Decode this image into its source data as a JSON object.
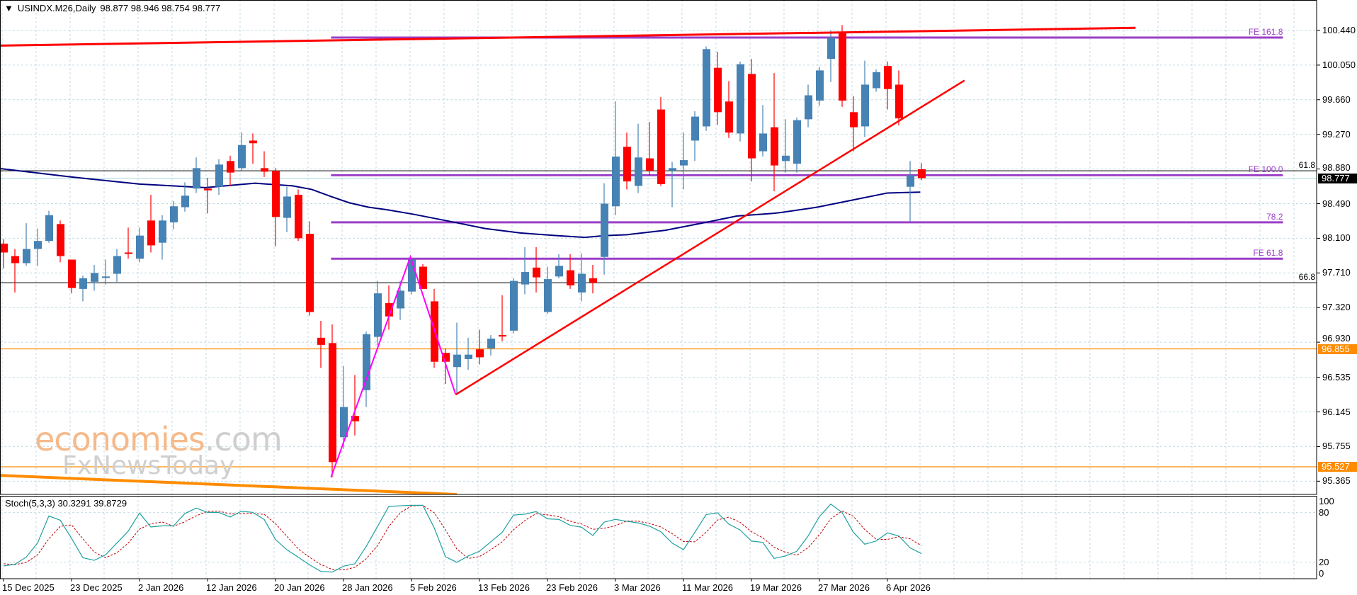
{
  "header": {
    "arrow_icon": "triangle-down-icon",
    "arrow": "▼",
    "symbol": "USINDX.M26,Daily",
    "ohlc": "98.877 98.946 98.754 98.777"
  },
  "watermark": {
    "brand1": "economies",
    "brand1_suffix": ".com",
    "brand2": "FxNewsToday",
    "brand1_color": "#f6b98a",
    "brand2_color": "#cfcfcf"
  },
  "colors": {
    "bull": "#4682B4",
    "bear": "#FF0000",
    "ma": "#000080",
    "fe": "#9B3FC8",
    "zigzag": "#FF00FF",
    "grid": "#c4dbe3",
    "orange": "#FF8C00",
    "stoch_k": "#20A0A0",
    "stoch_d": "#C00000"
  },
  "chart_data": {
    "type": "candlestick",
    "symbol": "USINDX.M26",
    "timeframe": "Daily",
    "ylim": [
      95.216,
      100.783
    ],
    "y_ticks": [
      "100.440",
      "100.050",
      "99.660",
      "99.270",
      "98.880",
      "98.490",
      "98.100",
      "97.710",
      "97.320",
      "96.930",
      "96.535",
      "96.145",
      "95.755",
      "95.365"
    ],
    "x_labels": [
      {
        "bar": 0,
        "text": "15 Dec 2025"
      },
      {
        "bar": 6,
        "text": "23 Dec 2025"
      },
      {
        "bar": 12,
        "text": "2 Jan 2026"
      },
      {
        "bar": 18,
        "text": "12 Jan 2026"
      },
      {
        "bar": 24,
        "text": "20 Jan 2026"
      },
      {
        "bar": 30,
        "text": "28 Jan 2026"
      },
      {
        "bar": 36,
        "text": "5 Feb 2026"
      },
      {
        "bar": 42,
        "text": "13 Feb 2026"
      },
      {
        "bar": 48,
        "text": "23 Feb 2026"
      },
      {
        "bar": 54,
        "text": "3 Mar 2026"
      },
      {
        "bar": 60,
        "text": "11 Mar 2026"
      },
      {
        "bar": 66,
        "text": "19 Mar 2026"
      },
      {
        "bar": 72,
        "text": "27 Mar 2026"
      },
      {
        "bar": 78,
        "text": "6 Apr 2026"
      }
    ],
    "candles_ohlc": [
      [
        98.04,
        98.09,
        97.76,
        97.94
      ],
      [
        97.9,
        97.98,
        97.49,
        97.82
      ],
      [
        97.82,
        98.27,
        97.79,
        97.98
      ],
      [
        97.98,
        98.21,
        97.79,
        98.07
      ],
      [
        98.07,
        98.41,
        98.05,
        98.36
      ],
      [
        98.26,
        98.3,
        97.83,
        97.9
      ],
      [
        97.86,
        97.86,
        97.48,
        97.54
      ],
      [
        97.53,
        97.68,
        97.39,
        97.65
      ],
      [
        97.61,
        97.8,
        97.51,
        97.71
      ],
      [
        97.66,
        97.86,
        97.58,
        97.67
      ],
      [
        97.7,
        97.98,
        97.61,
        97.9
      ],
      [
        97.94,
        98.22,
        97.87,
        97.93
      ],
      [
        97.87,
        98.22,
        97.83,
        98.13
      ],
      [
        98.3,
        98.59,
        97.94,
        98.02
      ],
      [
        98.05,
        98.36,
        97.86,
        98.3
      ],
      [
        98.28,
        98.52,
        98.2,
        98.46
      ],
      [
        98.45,
        98.73,
        98.4,
        98.58
      ],
      [
        98.66,
        99.01,
        98.61,
        98.89
      ],
      [
        98.66,
        98.78,
        98.38,
        98.64
      ],
      [
        98.68,
        98.99,
        98.59,
        98.93
      ],
      [
        98.97,
        99.03,
        98.69,
        98.84
      ],
      [
        98.89,
        99.29,
        98.86,
        99.15
      ],
      [
        99.2,
        99.28,
        98.94,
        99.17
      ],
      [
        98.89,
        99.08,
        98.79,
        98.85
      ],
      [
        98.86,
        98.89,
        98.01,
        98.34
      ],
      [
        98.33,
        98.68,
        98.17,
        98.57
      ],
      [
        98.59,
        98.65,
        98.07,
        98.1
      ],
      [
        98.15,
        98.29,
        97.23,
        97.27
      ],
      [
        96.98,
        97.17,
        96.64,
        96.9
      ],
      [
        96.92,
        97.13,
        95.41,
        95.58
      ],
      [
        95.86,
        96.66,
        95.73,
        96.2
      ],
      [
        96.1,
        96.56,
        95.88,
        96.04
      ],
      [
        96.39,
        97.05,
        96.2,
        97.02
      ],
      [
        96.99,
        97.62,
        96.9,
        97.48
      ],
      [
        97.37,
        97.57,
        97.07,
        97.22
      ],
      [
        97.31,
        97.62,
        97.18,
        97.51
      ],
      [
        97.5,
        97.87,
        97.47,
        97.86
      ],
      [
        97.78,
        97.81,
        97.53,
        97.53
      ],
      [
        97.39,
        97.53,
        96.64,
        96.71
      ],
      [
        96.81,
        96.86,
        96.46,
        96.71
      ],
      [
        96.65,
        97.15,
        96.34,
        96.79
      ],
      [
        96.74,
        96.98,
        96.62,
        96.79
      ],
      [
        96.85,
        97.07,
        96.68,
        96.76
      ],
      [
        96.86,
        97.01,
        96.78,
        96.97
      ],
      [
        97.01,
        97.46,
        96.94,
        97.0
      ],
      [
        97.06,
        97.65,
        97.03,
        97.62
      ],
      [
        97.58,
        98.0,
        97.47,
        97.72
      ],
      [
        97.77,
        98.0,
        97.49,
        97.66
      ],
      [
        97.27,
        97.78,
        97.25,
        97.64
      ],
      [
        97.67,
        97.92,
        97.65,
        97.79
      ],
      [
        97.74,
        97.92,
        97.53,
        97.57
      ],
      [
        97.49,
        97.93,
        97.39,
        97.7
      ],
      [
        97.65,
        97.8,
        97.48,
        97.6
      ],
      [
        97.89,
        98.72,
        97.69,
        98.49
      ],
      [
        98.46,
        99.64,
        98.36,
        99.02
      ],
      [
        99.13,
        99.29,
        98.65,
        98.74
      ],
      [
        98.69,
        99.39,
        98.61,
        99.01
      ],
      [
        99.0,
        99.41,
        98.81,
        98.86
      ],
      [
        99.55,
        99.69,
        98.69,
        98.71
      ],
      [
        98.86,
        98.96,
        98.45,
        98.89
      ],
      [
        98.92,
        99.29,
        98.65,
        98.98
      ],
      [
        99.2,
        99.53,
        98.97,
        99.47
      ],
      [
        99.36,
        100.26,
        99.31,
        100.23
      ],
      [
        100.02,
        100.2,
        99.38,
        99.52
      ],
      [
        99.64,
        99.87,
        99.23,
        99.29
      ],
      [
        99.28,
        100.09,
        99.19,
        100.06
      ],
      [
        99.95,
        100.12,
        98.74,
        99.0
      ],
      [
        99.08,
        99.6,
        99.02,
        99.28
      ],
      [
        99.35,
        99.96,
        98.63,
        98.92
      ],
      [
        98.97,
        99.44,
        98.84,
        99.03
      ],
      [
        98.94,
        99.46,
        98.84,
        99.43
      ],
      [
        99.44,
        99.83,
        99.35,
        99.71
      ],
      [
        99.65,
        100.03,
        99.59,
        99.99
      ],
      [
        100.12,
        100.44,
        99.86,
        100.36
      ],
      [
        100.42,
        100.5,
        99.58,
        99.65
      ],
      [
        99.52,
        99.7,
        99.08,
        99.35
      ],
      [
        99.36,
        100.1,
        99.24,
        99.83
      ],
      [
        99.79,
        100.0,
        99.75,
        99.97
      ],
      [
        100.04,
        100.09,
        99.55,
        99.78
      ],
      [
        99.83,
        99.99,
        99.37,
        99.45
      ],
      [
        98.68,
        98.97,
        98.29,
        98.81
      ],
      [
        98.877,
        98.946,
        98.754,
        98.777
      ]
    ],
    "moving_average": [
      [
        -0.3,
        98.885
      ],
      [
        6,
        98.79
      ],
      [
        12,
        98.71
      ],
      [
        17.8,
        98.67
      ],
      [
        22.2,
        98.72
      ],
      [
        25.5,
        98.69
      ],
      [
        27.2,
        98.65
      ],
      [
        28.9,
        98.57
      ],
      [
        30.5,
        98.5
      ],
      [
        32.2,
        98.45
      ],
      [
        33.9,
        98.42
      ],
      [
        36.2,
        98.37
      ],
      [
        39.4,
        98.29
      ],
      [
        42.5,
        98.21
      ],
      [
        45.6,
        98.16
      ],
      [
        48.8,
        98.13
      ],
      [
        51.3,
        98.11
      ],
      [
        53.1,
        98.13
      ],
      [
        55,
        98.14
      ],
      [
        58.4,
        98.19
      ],
      [
        61.6,
        98.27
      ],
      [
        64.7,
        98.35
      ],
      [
        67.9,
        98.38
      ],
      [
        68.6,
        98.39
      ],
      [
        71.8,
        98.45
      ],
      [
        74.9,
        98.53
      ],
      [
        78,
        98.61
      ],
      [
        80.9,
        98.62
      ]
    ],
    "current_price": "98.777",
    "price_tags": [
      {
        "text": "98.777",
        "value": 98.777,
        "color": "#000000"
      },
      {
        "text": "96.855",
        "value": 96.855,
        "color": "#FF8C00"
      },
      {
        "text": "95.527",
        "value": 95.527,
        "color": "#FF8C00"
      }
    ],
    "horizontal_lines": [
      {
        "value": 96.855,
        "color": "#FF8C00"
      },
      {
        "value": 95.527,
        "color": "#FF8C00"
      }
    ],
    "fe_levels": {
      "from_bar": 28.9,
      "to_bar": 112.9,
      "items": [
        {
          "label": "FE 161.8",
          "value": 100.36
        },
        {
          "label": "FE 100.0",
          "value": 98.81
        },
        {
          "label": "78.2",
          "value": 98.28
        },
        {
          "label": "FE 61.8",
          "value": 97.87
        }
      ]
    },
    "fib_lines": [
      {
        "label": "61.8",
        "value": 98.86
      },
      {
        "label": "66.8",
        "value": 97.6
      }
    ],
    "trendlines": [
      {
        "name": "resistance-trendline",
        "color": "#FF0000",
        "width": 3,
        "points": [
          [
            -0.3,
            100.27
          ],
          [
            99.9,
            100.47
          ]
        ]
      },
      {
        "name": "support-trendline",
        "color": "#FF0000",
        "width": 2.5,
        "points": [
          [
            39.9,
            96.34
          ],
          [
            84.8,
            99.877
          ]
        ]
      },
      {
        "name": "orange-trendline",
        "color": "#FF8C00",
        "width": 4,
        "points": [
          [
            -0.3,
            95.43
          ],
          [
            40,
            95.216
          ]
        ]
      }
    ],
    "zigzag": [
      [
        28.9,
        95.41
      ],
      [
        35.9,
        97.89
      ],
      [
        39.9,
        96.34
      ]
    ],
    "stochastic": {
      "label": "Stoch(5,3,3)",
      "k_value": "30.3291",
      "d_value": "39.8729",
      "y_ticks": [
        "100",
        "80",
        "20",
        "0"
      ],
      "levels": [
        80,
        20
      ],
      "ylim": [
        0,
        100
      ],
      "k": [
        15.4,
        17.4,
        26,
        43,
        75.7,
        70.6,
        48.7,
        25.3,
        22.2,
        28.7,
        43,
        57.3,
        79.2,
        62.4,
        63.8,
        63.8,
        78.6,
        85.2,
        80,
        80,
        74.4,
        81.5,
        80,
        71.5,
        47.3,
        35,
        26,
        16.8,
        8.8,
        8,
        15.1,
        18,
        38.8,
        63,
        87.2,
        88,
        88.6,
        88.6,
        61.5,
        26.5,
        19.7,
        27.4,
        33.1,
        44.5,
        55.9,
        76.8,
        77.9,
        81,
        72.2,
        71.6,
        64.5,
        62.2,
        52.2,
        68.2,
        71.6,
        69.3,
        67.3,
        63.5,
        56.7,
        43,
        35,
        55.9,
        77.3,
        79.6,
        65.9,
        58.8,
        45.4,
        43.9,
        24.5,
        27.4,
        33.1,
        51.6,
        75,
        90,
        80,
        55.9,
        41.6,
        45.4,
        55.3,
        51.6,
        37.3,
        30.3
      ],
      "d": [
        18,
        17,
        19.6,
        28.8,
        48.2,
        63.1,
        65,
        48.2,
        32.1,
        25.4,
        31.3,
        43,
        59.8,
        66.3,
        68.5,
        63.3,
        68.7,
        75.9,
        81.3,
        81.7,
        78.1,
        78.6,
        78.6,
        77.7,
        66.3,
        51.3,
        36.1,
        25.9,
        17.2,
        11.2,
        10.6,
        13.7,
        24,
        39.9,
        63,
        79.4,
        87.9,
        88.4,
        79.6,
        58.9,
        35.9,
        24.5,
        26.7,
        35,
        44.5,
        59.1,
        70.2,
        78.6,
        77,
        74.9,
        69.4,
        66.1,
        59.6,
        60.9,
        64,
        69.7,
        69.4,
        66.7,
        62.5,
        54.4,
        44.9,
        44.6,
        56.1,
        70.9,
        74.3,
        68.1,
        56.7,
        49.4,
        37.9,
        31.9,
        28.3,
        37.4,
        53.2,
        72.2,
        81.7,
        75.3,
        59.2,
        47.6,
        47.4,
        50.8,
        48.1,
        39.9
      ]
    }
  }
}
